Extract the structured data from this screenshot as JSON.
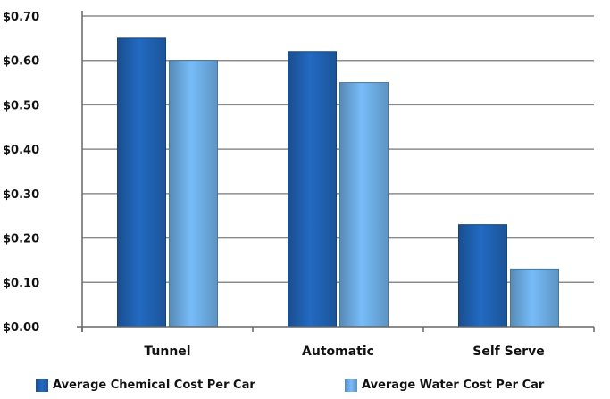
{
  "chart_data": {
    "type": "bar",
    "categories": [
      "Tunnel",
      "Automatic",
      "Self Serve"
    ],
    "series": [
      {
        "name": "Average Chemical Cost Per Car",
        "values": [
          0.65,
          0.62,
          0.23
        ],
        "color": "#1f5fad"
      },
      {
        "name": "Average Water Cost Per Car",
        "values": [
          0.6,
          0.55,
          0.13
        ],
        "color": "#6aa8de"
      }
    ],
    "ylim": [
      0,
      0.7
    ],
    "yticks": [
      "$0.70",
      "$0.60",
      "$0.50",
      "$0.40",
      "$0.30",
      "$0.20",
      "$0.10",
      "$0.00"
    ],
    "grid": true,
    "legend_position": "bottom"
  }
}
